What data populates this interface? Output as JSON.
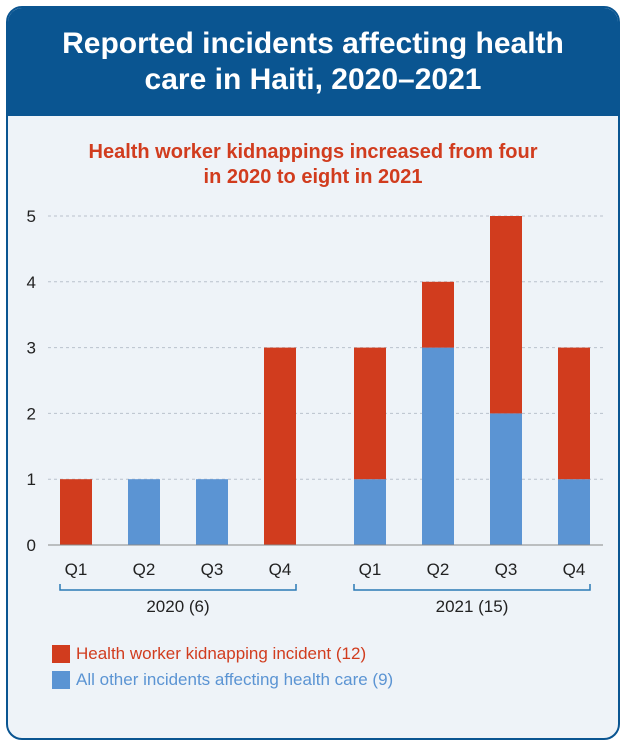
{
  "title": "Reported incidents affecting health care in Haiti, 2020–2021",
  "colors": {
    "kidnapping": "#d13c1e",
    "other": "#5b94d3",
    "header_bg": "#0a5591",
    "panel_bg": "#eef3f8"
  },
  "chart_data": {
    "type": "bar",
    "stacked": true,
    "subtitle_lines": [
      "Health worker kidnappings increased from four",
      "in 2020 to eight in 2021"
    ],
    "categories": [
      "Q1",
      "Q2",
      "Q3",
      "Q4",
      "Q1",
      "Q2",
      "Q3",
      "Q4"
    ],
    "groups": [
      {
        "label": "2020 (6)",
        "categories": [
          "Q1",
          "Q2",
          "Q3",
          "Q4"
        ]
      },
      {
        "label": "2021 (15)",
        "categories": [
          "Q1",
          "Q2",
          "Q3",
          "Q4"
        ]
      }
    ],
    "series": [
      {
        "name": "All other incidents affecting health care (9)",
        "key": "other",
        "values": [
          0,
          1,
          1,
          0,
          1,
          3,
          2,
          1
        ]
      },
      {
        "name": "Health worker kidnapping incident (12)",
        "key": "kidnapping",
        "values": [
          1,
          0,
          0,
          3,
          2,
          1,
          3,
          2
        ]
      }
    ],
    "ylim": [
      0,
      5
    ],
    "yticks": [
      0,
      1,
      2,
      3,
      4,
      5
    ],
    "grid": true,
    "legend_position": "bottom-left"
  },
  "legend": [
    {
      "label": "Health worker kidnapping incident (12)",
      "key": "kidnapping"
    },
    {
      "label": "All other incidents affecting health care (9)",
      "key": "other"
    }
  ]
}
